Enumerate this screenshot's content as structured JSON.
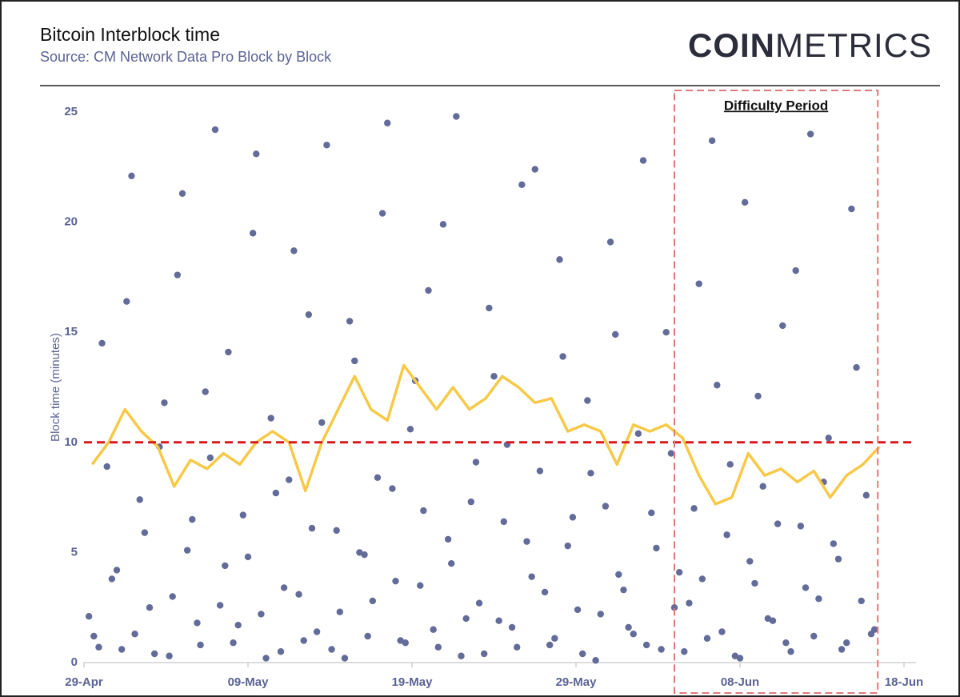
{
  "chart_data": {
    "type": "scatter",
    "title": "Bitcoin Interblock time",
    "subtitle": "Source: CM Network Data Pro Block by Block",
    "logo": [
      "COIN",
      "METRICS"
    ],
    "y_label": "Block time (minutes)",
    "xlim": [
      0,
      50
    ],
    "xticks": [
      {
        "value": 0,
        "label": "29-Apr"
      },
      {
        "value": 10,
        "label": "09-May"
      },
      {
        "value": 20,
        "label": "19-May"
      },
      {
        "value": 30,
        "label": "29-May"
      },
      {
        "value": 40,
        "label": "08-Jun"
      },
      {
        "value": 50,
        "label": "18-Jun"
      }
    ],
    "ylim": [
      0,
      25
    ],
    "yticks": [
      0,
      5,
      10,
      15,
      20,
      25
    ],
    "reference_line": {
      "value": 10,
      "color": "#d9191c"
    },
    "annotation": {
      "text": "Difficulty Period",
      "x": [
        36,
        48.4
      ],
      "color": "#e07a7a"
    },
    "series": [
      {
        "type": "scatter",
        "color": "#636b99",
        "x": [
          0.6,
          1.1,
          1.7,
          2.3,
          2.9,
          3.4,
          4.0,
          4.6,
          5.2,
          5.7,
          6.3,
          6.9,
          7.4,
          8.0,
          8.6,
          9.1,
          9.7,
          10.3,
          10.8,
          11.4,
          12.0,
          12.5,
          13.1,
          13.7,
          14.2,
          14.8,
          15.4,
          15.9,
          16.5,
          17.1,
          17.6,
          18.2,
          18.8,
          19.3,
          19.9,
          20.5,
          21.0,
          21.6,
          22.2,
          22.7,
          23.3,
          23.9,
          24.4,
          25.0,
          25.6,
          26.1,
          26.7,
          27.3,
          27.8,
          28.4,
          29.0,
          29.5,
          30.1,
          30.7,
          31.2,
          31.8,
          32.4,
          32.9,
          33.5,
          34.1,
          34.6,
          35.2,
          35.8,
          36.3,
          36.9,
          37.5,
          38.0,
          38.6,
          39.2,
          39.7,
          40.3,
          40.9,
          41.4,
          42.0,
          42.6,
          43.1,
          43.7,
          44.3,
          44.8,
          45.4,
          46.0,
          46.5,
          47.1,
          47.7,
          48.2,
          0.3,
          0.9,
          1.4,
          2.0,
          2.6,
          3.1,
          3.7,
          4.3,
          4.9,
          5.4,
          6.0,
          6.6,
          7.1,
          7.7,
          8.3,
          8.8,
          9.4,
          10.0,
          10.5,
          11.1,
          11.7,
          12.2,
          12.8,
          13.4,
          13.9,
          14.5,
          15.1,
          15.6,
          16.2,
          16.8,
          17.3,
          17.9,
          18.5,
          19.0,
          19.6,
          20.2,
          20.7,
          21.3,
          21.9,
          22.4,
          23.0,
          23.6,
          24.1,
          24.7,
          25.3,
          25.8,
          26.4,
          27.0,
          27.5,
          28.1,
          28.7,
          29.2,
          29.8,
          30.4,
          30.9,
          31.5,
          32.1,
          32.6,
          33.2,
          33.8,
          34.3,
          34.9,
          35.5,
          36.0,
          36.6,
          37.2,
          37.7,
          38.3,
          38.9,
          39.4,
          40.0,
          40.6,
          41.1,
          41.7,
          42.3,
          42.8,
          43.4,
          44.0,
          44.5,
          45.1,
          45.7,
          46.2,
          46.8,
          47.4,
          48.0
        ],
        "values": [
          1.2,
          14.5,
          3.8,
          0.6,
          22.1,
          7.4,
          2.5,
          9.8,
          0.3,
          17.6,
          5.1,
          1.8,
          12.3,
          24.2,
          4.4,
          0.9,
          6.7,
          19.5,
          2.2,
          11.1,
          0.5,
          8.3,
          3.1,
          15.8,
          1.4,
          23.5,
          6.0,
          0.2,
          13.7,
          4.9,
          2.8,
          20.4,
          7.9,
          1.0,
          10.6,
          3.5,
          16.9,
          0.7,
          5.6,
          24.8,
          2.0,
          9.1,
          0.4,
          13.0,
          6.4,
          1.6,
          21.7,
          3.9,
          8.7,
          0.8,
          18.3,
          5.3,
          2.4,
          11.9,
          0.1,
          7.1,
          14.9,
          3.3,
          1.3,
          22.8,
          6.8,
          0.6,
          9.5,
          4.1,
          2.7,
          17.2,
          1.1,
          12.6,
          5.8,
          0.3,
          20.9,
          3.6,
          8.0,
          1.9,
          15.3,
          0.5,
          6.2,
          24.0,
          2.9,
          10.2,
          4.7,
          0.9,
          13.4,
          7.6,
          1.5,
          2.1,
          0.7,
          8.9,
          4.2,
          16.4,
          1.3,
          5.9,
          0.4,
          11.8,
          3.0,
          21.3,
          6.5,
          0.8,
          9.3,
          2.6,
          14.1,
          1.7,
          4.8,
          23.1,
          0.2,
          7.7,
          3.4,
          18.7,
          1.0,
          6.1,
          10.9,
          0.6,
          2.3,
          15.5,
          5.0,
          1.2,
          8.4,
          24.5,
          3.7,
          0.9,
          12.8,
          6.9,
          1.5,
          19.9,
          4.5,
          0.3,
          7.3,
          2.7,
          16.1,
          1.9,
          9.9,
          0.7,
          5.5,
          22.4,
          3.2,
          1.1,
          13.9,
          6.6,
          0.4,
          8.6,
          2.2,
          19.1,
          4.0,
          1.6,
          10.4,
          0.8,
          5.2,
          15.0,
          2.5,
          0.5,
          7.0,
          3.8,
          23.7,
          1.4,
          9.0,
          0.2,
          4.6,
          12.1,
          2.0,
          6.3,
          0.9,
          17.8,
          3.4,
          1.2,
          8.2,
          5.4,
          0.6,
          20.6,
          2.8,
          1.3
        ]
      },
      {
        "type": "line",
        "color": "#f7c948",
        "x": [
          0.5,
          1.5,
          2.5,
          3.5,
          4.5,
          5.5,
          6.5,
          7.5,
          8.5,
          9.5,
          10.5,
          11.5,
          12.5,
          13.5,
          14.5,
          15.5,
          16.5,
          17.5,
          18.5,
          19.5,
          20.5,
          21.5,
          22.5,
          23.5,
          24.5,
          25.5,
          26.5,
          27.5,
          28.5,
          29.5,
          30.5,
          31.5,
          32.5,
          33.5,
          34.5,
          35.5,
          36.5,
          37.5,
          38.5,
          39.5,
          40.5,
          41.5,
          42.5,
          43.5,
          44.5,
          45.5,
          46.5,
          47.5,
          48.5
        ],
        "values": [
          9.0,
          10.0,
          11.5,
          10.5,
          9.8,
          8.0,
          9.2,
          8.8,
          9.5,
          9.0,
          10.0,
          10.5,
          10.0,
          7.8,
          10.0,
          11.5,
          13.0,
          11.5,
          11.0,
          13.5,
          12.5,
          11.5,
          12.5,
          11.5,
          12.0,
          13.0,
          12.5,
          11.8,
          12.0,
          10.5,
          10.8,
          10.5,
          9.0,
          10.8,
          10.5,
          10.8,
          10.2,
          8.5,
          7.2,
          7.5,
          9.5,
          8.5,
          8.8,
          8.2,
          8.7,
          7.5,
          8.5,
          9.0,
          9.8
        ]
      }
    ]
  }
}
